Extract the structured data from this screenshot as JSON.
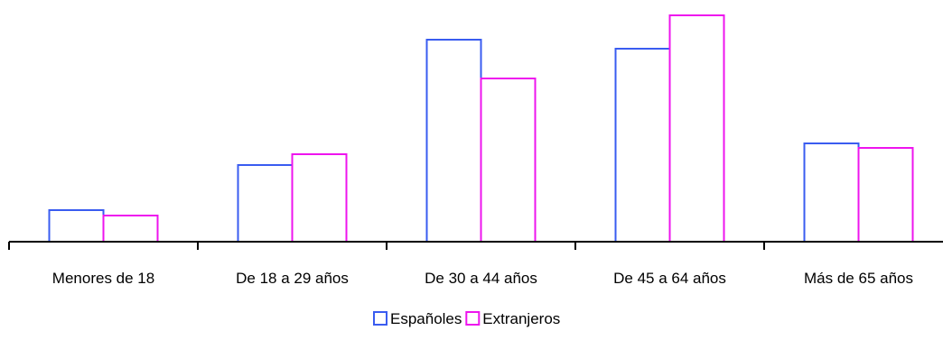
{
  "chart_data": {
    "type": "bar",
    "title": "",
    "xlabel": "",
    "ylabel": "",
    "categories": [
      "Menores de 18",
      "De 18 a 29 años",
      "De 30 a 44 años",
      "De 45 a 64 años",
      "Más de 65 años"
    ],
    "series": [
      {
        "name": "Españoles",
        "color": "#3a5cf0",
        "values": [
          35,
          85,
          224,
          214,
          109
        ]
      },
      {
        "name": "Extranjeros",
        "color": "#ee14ee",
        "values": [
          29,
          97,
          181,
          251,
          104
        ]
      }
    ],
    "ylim": [
      0,
      251
    ],
    "y_axis_visible": false,
    "grid": false,
    "legend_position": "bottom-center",
    "bar_fill": "#ffffff"
  }
}
